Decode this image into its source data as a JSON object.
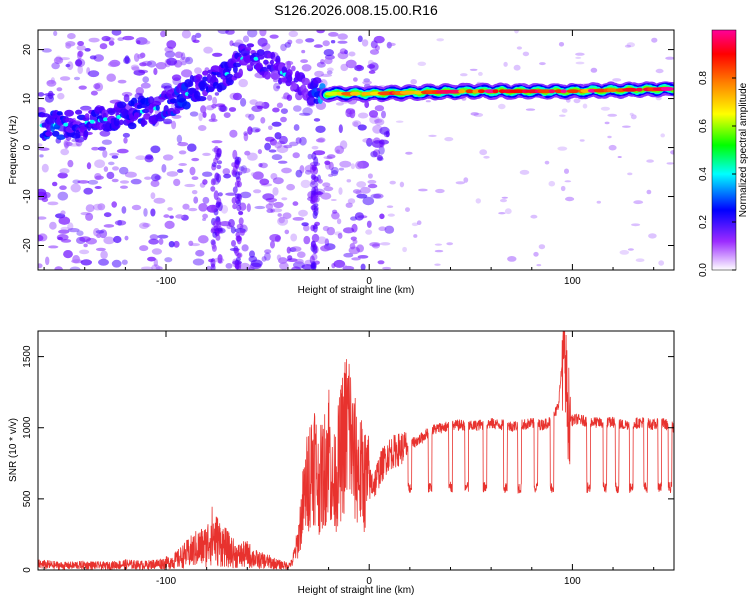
{
  "title": "S126.2026.008.15.00.R16",
  "colors": {
    "snr_line": "#e8322e",
    "axis": "#000000"
  },
  "chart_data": [
    {
      "type": "heatmap",
      "title": "S126.2026.008.15.00.R16",
      "xlabel": "Height of straight line (km)",
      "ylabel": "Frequency (Hz)",
      "xlim": [
        -163,
        150
      ],
      "ylim": [
        -25,
        24
      ],
      "x_ticks": [
        -100,
        0,
        100
      ],
      "y_ticks": [
        -20,
        -10,
        0,
        10,
        20
      ],
      "grid": false,
      "colorbar": {
        "label": "Normalized spectral amplitude",
        "range": [
          0,
          1
        ],
        "ticks": [
          0.0,
          0.2,
          0.4,
          0.6,
          0.8
        ],
        "colormap": [
          "#ffffff",
          "#6d00ff",
          "#0000ff",
          "#00ffff",
          "#00ff00",
          "#ffff00",
          "#ff8000",
          "#ff0000",
          "#ff00aa"
        ]
      },
      "ridge": {
        "description_points": [
          {
            "x": -155,
            "freq": 4.5,
            "amp": 0.45
          },
          {
            "x": -140,
            "freq": 5.0,
            "amp": 0.35
          },
          {
            "x": -120,
            "freq": 6.5,
            "amp": 0.4
          },
          {
            "x": -100,
            "freq": 8.5,
            "amp": 0.45
          },
          {
            "x": -85,
            "freq": 12.0,
            "amp": 0.4
          },
          {
            "x": -70,
            "freq": 15.0,
            "amp": 0.35
          },
          {
            "x": -60,
            "freq": 19.0,
            "amp": 0.35
          },
          {
            "x": -45,
            "freq": 16.0,
            "amp": 0.3
          },
          {
            "x": -30,
            "freq": 11.5,
            "amp": 0.3
          },
          {
            "x": -20,
            "freq": 11.0,
            "amp": 0.7
          },
          {
            "x": 0,
            "freq": 11.0,
            "amp": 0.85
          },
          {
            "x": 50,
            "freq": 11.5,
            "amp": 0.9
          },
          {
            "x": 100,
            "freq": 11.5,
            "amp": 0.9
          },
          {
            "x": 150,
            "freq": 12.0,
            "amp": 0.95
          }
        ]
      }
    },
    {
      "type": "line",
      "xlabel": "Height of straight line (km)",
      "ylabel": "SNR (10 * v/v)",
      "xlim": [
        -163,
        150
      ],
      "ylim": [
        0,
        1680
      ],
      "x_ticks": [
        -100,
        0,
        100
      ],
      "y_ticks": [
        0,
        500,
        1000,
        1500
      ],
      "grid": false,
      "series": [
        {
          "color": "#e8322e",
          "x": [
            -163,
            -150,
            -140,
            -130,
            -120,
            -110,
            -100,
            -95,
            -90,
            -85,
            -80,
            -78,
            -75,
            -70,
            -65,
            -60,
            -55,
            -50,
            -45,
            -40,
            -38,
            -35,
            -33,
            -30,
            -27,
            -25,
            -22,
            -20,
            -18,
            -15,
            -12,
            -10,
            -8,
            -5,
            -3,
            0,
            3,
            5,
            8,
            10,
            15,
            20,
            25,
            30,
            35,
            40,
            45,
            50,
            55,
            60,
            65,
            70,
            75,
            80,
            85,
            90,
            93,
            95,
            96,
            97,
            98,
            100,
            102,
            105,
            110,
            115,
            120,
            125,
            130,
            135,
            140,
            145,
            150
          ],
          "values": [
            40,
            30,
            35,
            30,
            40,
            35,
            50,
            70,
            110,
            150,
            170,
            250,
            210,
            150,
            100,
            110,
            70,
            60,
            40,
            30,
            50,
            200,
            420,
            650,
            800,
            600,
            700,
            900,
            550,
            750,
            950,
            1050,
            800,
            700,
            650,
            600,
            620,
            700,
            780,
            820,
            850,
            880,
            920,
            980,
            1000,
            1010,
            1020,
            1010,
            1020,
            1030,
            1020,
            1010,
            1020,
            1030,
            1020,
            1050,
            1150,
            1450,
            1620,
            1300,
            1100,
            1050,
            1060,
            1050,
            1040,
            1030,
            1040,
            1020,
            1030,
            1040,
            1020,
            1030,
            1000
          ],
          "dip_positions": [
            20,
            30,
            40,
            48,
            57,
            67,
            74,
            82,
            90,
            108,
            116,
            122,
            129,
            136,
            143,
            148
          ],
          "dip_level": 580
        }
      ]
    }
  ]
}
